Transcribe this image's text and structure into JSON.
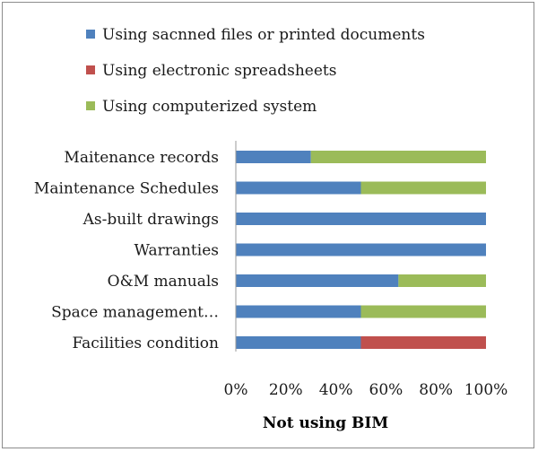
{
  "chart_data": {
    "type": "bar",
    "orientation": "horizontal",
    "stacked": "percent",
    "title": "",
    "xlabel": "Not using BIM",
    "ylabel": "",
    "xlim": [
      0,
      100
    ],
    "x_ticks": [
      "0%",
      "20%",
      "40%",
      "60%",
      "80%",
      "100%"
    ],
    "categories": [
      "Maitenance records",
      "Maintenance Schedules",
      "As-built drawings",
      "Warranties",
      "O&M manuals",
      "Space management…",
      "Facilities condition"
    ],
    "series": [
      {
        "name": "Using sacnned files or printed documents",
        "color": "#4f81bd",
        "values": [
          30,
          50,
          100,
          100,
          65,
          50,
          50
        ]
      },
      {
        "name": "Using electronic spreadsheets",
        "color": "#c0504d",
        "values": [
          0,
          0,
          0,
          0,
          0,
          0,
          50
        ]
      },
      {
        "name": "Using computerized system",
        "color": "#9bbb59",
        "values": [
          70,
          50,
          0,
          0,
          35,
          50,
          0
        ]
      }
    ],
    "legend_position": "top",
    "grid": false
  }
}
